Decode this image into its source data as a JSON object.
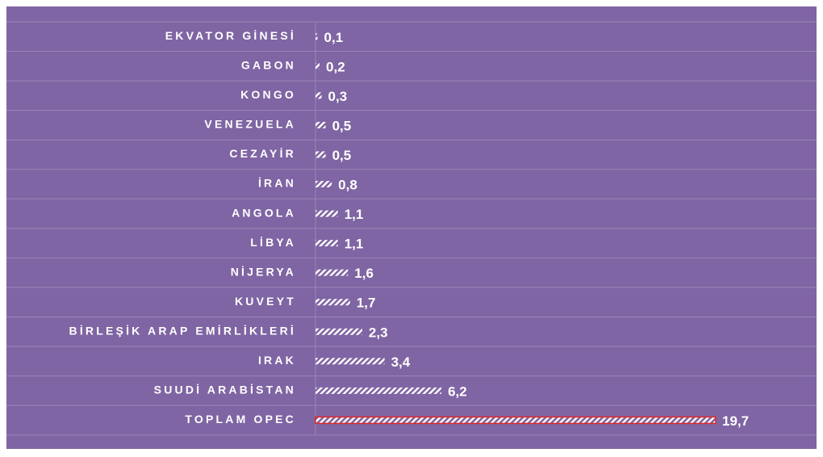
{
  "chart_data": {
    "type": "barh",
    "categories": [
      "EKVATOR GİNESİ",
      "GABON",
      "KONGO",
      "VENEZUELA",
      "CEZAYİR",
      "İRAN",
      "ANGOLA",
      "LİBYA",
      "NİJERYA",
      "KUVEYT",
      "BİRLEŞİK ARAP EMİRLİKLERİ",
      "IRAK",
      "SUUDİ ARABİSTAN",
      "TOPLAM OPEC"
    ],
    "values": [
      0.1,
      0.2,
      0.3,
      0.5,
      0.5,
      0.8,
      1.1,
      1.1,
      1.6,
      1.7,
      2.3,
      3.4,
      6.2,
      19.7
    ],
    "value_labels": [
      "0,1",
      "0,2",
      "0,3",
      "0,5",
      "0,5",
      "0,8",
      "1,1",
      "1,1",
      "1,6",
      "1,7",
      "2,3",
      "3,4",
      "6,2",
      "19,7"
    ],
    "color": "#ffffff",
    "edgecolors": [
      null,
      null,
      null,
      null,
      null,
      null,
      null,
      null,
      null,
      null,
      null,
      null,
      null,
      "#e02828"
    ],
    "background": "#7f65a3"
  }
}
